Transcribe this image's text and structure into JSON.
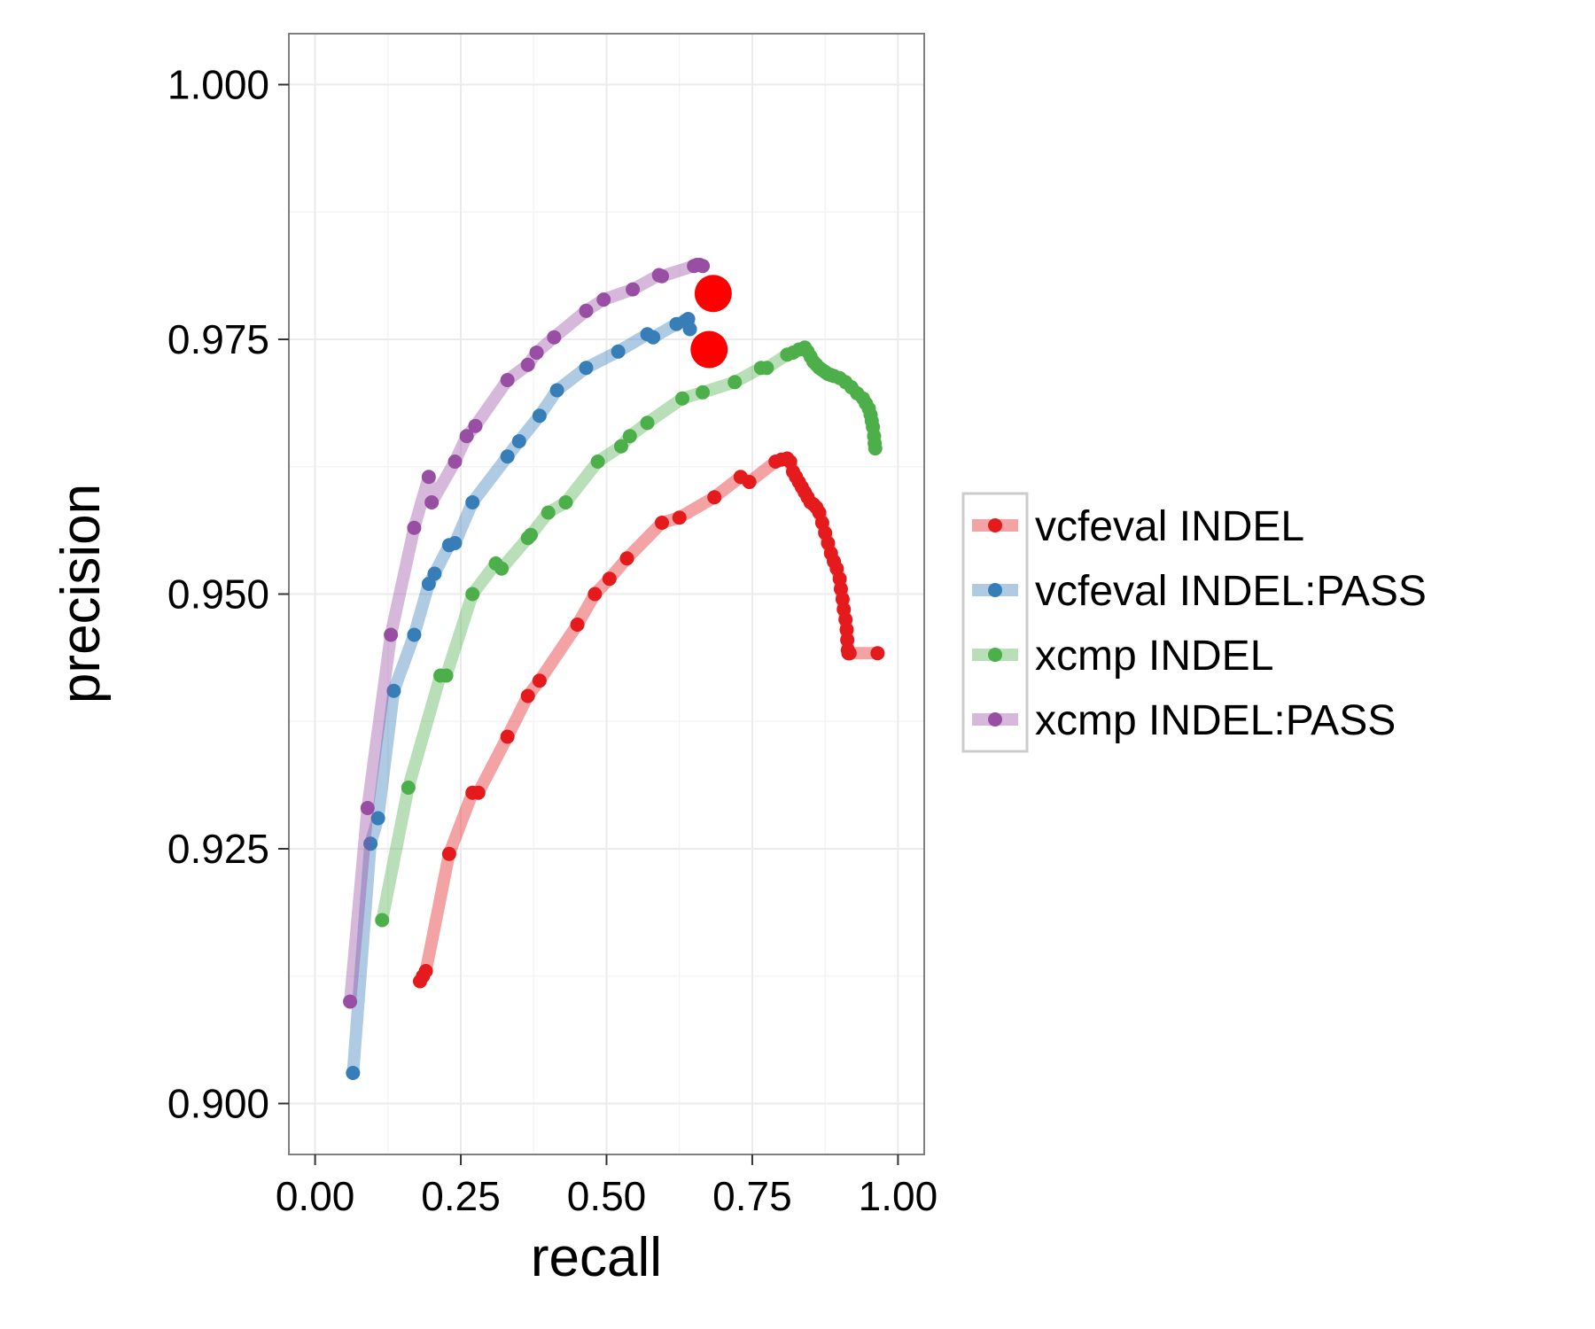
{
  "chart_data": {
    "type": "line",
    "title": "",
    "xlabel": "recall",
    "ylabel": "precision",
    "xlim": [
      -0.045,
      1.045
    ],
    "ylim": [
      0.895,
      1.005
    ],
    "x_ticks": [
      "0.00",
      "0.25",
      "0.50",
      "0.75",
      "1.00"
    ],
    "y_ticks": [
      "0.900",
      "0.925",
      "0.950",
      "0.975",
      "1.000"
    ],
    "grid": true,
    "legend_position": "right",
    "series": [
      {
        "name": "vcfeval INDEL",
        "color": "#e41a1c",
        "x": [
          0.18,
          0.185,
          0.19,
          0.23,
          0.27,
          0.28,
          0.33,
          0.365,
          0.385,
          0.45,
          0.48,
          0.505,
          0.535,
          0.595,
          0.625,
          0.685,
          0.73,
          0.745,
          0.79,
          0.8,
          0.81,
          0.815,
          0.82,
          0.825,
          0.83,
          0.835,
          0.84,
          0.845,
          0.85,
          0.855,
          0.86,
          0.865,
          0.87,
          0.875,
          0.88,
          0.885,
          0.89,
          0.895,
          0.9,
          0.902,
          0.905,
          0.907,
          0.91,
          0.912,
          0.913,
          0.914,
          0.915,
          0.916,
          0.917,
          0.965
        ],
        "y": [
          0.912,
          0.9125,
          0.913,
          0.9245,
          0.9305,
          0.9305,
          0.936,
          0.94,
          0.9415,
          0.947,
          0.95,
          0.9515,
          0.9535,
          0.957,
          0.9575,
          0.9595,
          0.9615,
          0.961,
          0.963,
          0.9632,
          0.9633,
          0.963,
          0.962,
          0.9615,
          0.961,
          0.9605,
          0.96,
          0.9595,
          0.959,
          0.9588,
          0.9585,
          0.958,
          0.957,
          0.956,
          0.955,
          0.954,
          0.9532,
          0.9525,
          0.9515,
          0.9505,
          0.9495,
          0.9485,
          0.9475,
          0.9465,
          0.9455,
          0.9445,
          0.9442,
          0.9442,
          0.9442,
          0.9442
        ]
      },
      {
        "name": "vcfeval INDEL:PASS",
        "color": "#377eb8",
        "x": [
          0.065,
          0.095,
          0.108,
          0.135,
          0.17,
          0.195,
          0.205,
          0.23,
          0.24,
          0.27,
          0.33,
          0.35,
          0.385,
          0.415,
          0.465,
          0.52,
          0.57,
          0.58,
          0.62,
          0.635,
          0.64,
          0.643
        ],
        "y": [
          0.903,
          0.9255,
          0.928,
          0.9405,
          0.946,
          0.951,
          0.952,
          0.9548,
          0.955,
          0.959,
          0.9635,
          0.965,
          0.9675,
          0.97,
          0.9722,
          0.9738,
          0.9755,
          0.9752,
          0.9765,
          0.9768,
          0.977,
          0.976
        ]
      },
      {
        "name": "xcmp INDEL",
        "color": "#4daf4a",
        "x": [
          0.115,
          0.16,
          0.215,
          0.225,
          0.27,
          0.31,
          0.32,
          0.365,
          0.37,
          0.4,
          0.43,
          0.485,
          0.525,
          0.54,
          0.57,
          0.63,
          0.665,
          0.72,
          0.765,
          0.775,
          0.81,
          0.82,
          0.83,
          0.84,
          0.845,
          0.85,
          0.855,
          0.86,
          0.865,
          0.87,
          0.875,
          0.88,
          0.885,
          0.89,
          0.9,
          0.91,
          0.92,
          0.93,
          0.94,
          0.945,
          0.95,
          0.953,
          0.955,
          0.957,
          0.959,
          0.96,
          0.961
        ],
        "y": [
          0.918,
          0.931,
          0.942,
          0.942,
          0.95,
          0.953,
          0.9525,
          0.9555,
          0.9558,
          0.958,
          0.959,
          0.963,
          0.9645,
          0.9655,
          0.9668,
          0.9692,
          0.9698,
          0.9708,
          0.9722,
          0.9722,
          0.9735,
          0.9737,
          0.974,
          0.9742,
          0.9738,
          0.9733,
          0.9728,
          0.9725,
          0.9722,
          0.972,
          0.9718,
          0.9716,
          0.9715,
          0.9714,
          0.9712,
          0.9708,
          0.9703,
          0.9697,
          0.9692,
          0.9687,
          0.9682,
          0.9676,
          0.967,
          0.9664,
          0.9655,
          0.9648,
          0.9643
        ]
      },
      {
        "name": "xcmp INDEL:PASS",
        "color": "#984ea3",
        "x": [
          0.06,
          0.09,
          0.13,
          0.17,
          0.195,
          0.2,
          0.24,
          0.26,
          0.275,
          0.33,
          0.365,
          0.38,
          0.41,
          0.465,
          0.495,
          0.545,
          0.59,
          0.595,
          0.65,
          0.655,
          0.66,
          0.665
        ],
        "y": [
          0.91,
          0.929,
          0.946,
          0.9565,
          0.9615,
          0.959,
          0.963,
          0.9655,
          0.9665,
          0.971,
          0.9725,
          0.9737,
          0.9752,
          0.9778,
          0.9789,
          0.9799,
          0.9813,
          0.9812,
          0.9822,
          0.9823,
          0.9823,
          0.9822
        ]
      }
    ],
    "highlight_points": [
      {
        "x": 0.683,
        "y": 0.9795,
        "color": "#ff0000"
      },
      {
        "x": 0.676,
        "y": 0.974,
        "color": "#ff0000"
      }
    ]
  }
}
